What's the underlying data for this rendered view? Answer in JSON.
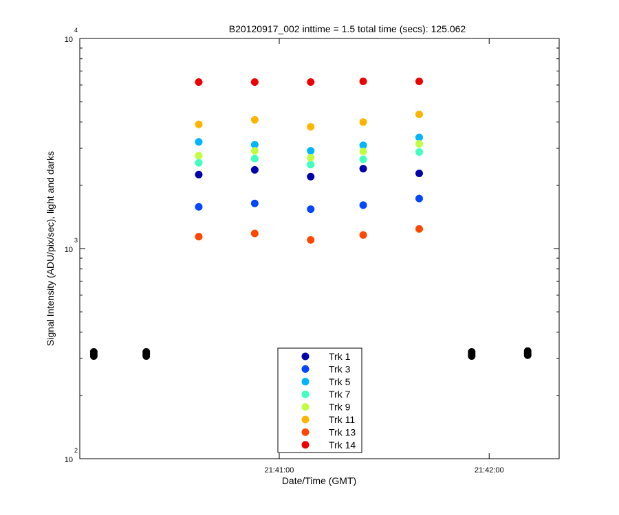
{
  "chart_data": {
    "type": "scatter",
    "title": "B20120917_002 inttime = 1.5 total time (secs): 125.062",
    "xlabel": "Date/Time (GMT)",
    "ylabel": "Signal Intensity (ADU/pix/sec), light and darks",
    "yscale": "log",
    "ylim": [
      100,
      10000
    ],
    "xlim": [
      "21:40:03",
      "21:42:20"
    ],
    "grid": false,
    "legend_position": "bottom-center",
    "x_ticks": [
      "21:41:00",
      "21:42:00"
    ],
    "y_ticks": [
      {
        "base": "10",
        "exp": "2"
      },
      {
        "base": "10",
        "exp": "3"
      },
      {
        "base": "10",
        "exp": "4"
      }
    ],
    "light_times": [
      "21:40:37",
      "21:40:53",
      "21:41:09",
      "21:41:24",
      "21:41:40"
    ],
    "series": [
      {
        "name": "Trk 1",
        "color": "#0000aa",
        "values": [
          2250,
          2370,
          2200,
          2400,
          2280
        ]
      },
      {
        "name": "Trk 3",
        "color": "#0047ff",
        "values": [
          1580,
          1640,
          1540,
          1610,
          1730
        ]
      },
      {
        "name": "Trk 5",
        "color": "#00b4ff",
        "values": [
          3220,
          3120,
          2920,
          3100,
          3380
        ]
      },
      {
        "name": "Trk 7",
        "color": "#40ffbf",
        "values": [
          2560,
          2680,
          2510,
          2660,
          2880
        ]
      },
      {
        "name": "Trk 9",
        "color": "#bfff40",
        "values": [
          2770,
          2920,
          2710,
          2900,
          3150
        ]
      },
      {
        "name": "Trk 11",
        "color": "#ffb400",
        "values": [
          3900,
          4100,
          3800,
          4000,
          4350
        ]
      },
      {
        "name": "Trk 13",
        "color": "#ff4700",
        "values": [
          1140,
          1180,
          1100,
          1160,
          1240
        ]
      },
      {
        "name": "Trk 14",
        "color": "#ee0000",
        "values": [
          6200,
          6200,
          6200,
          6250,
          6250
        ]
      }
    ],
    "darks": {
      "color": "#000000",
      "times": [
        "21:40:07",
        "21:40:22",
        "21:41:55",
        "21:42:11"
      ],
      "values": [
        315,
        315,
        315,
        318
      ]
    }
  }
}
